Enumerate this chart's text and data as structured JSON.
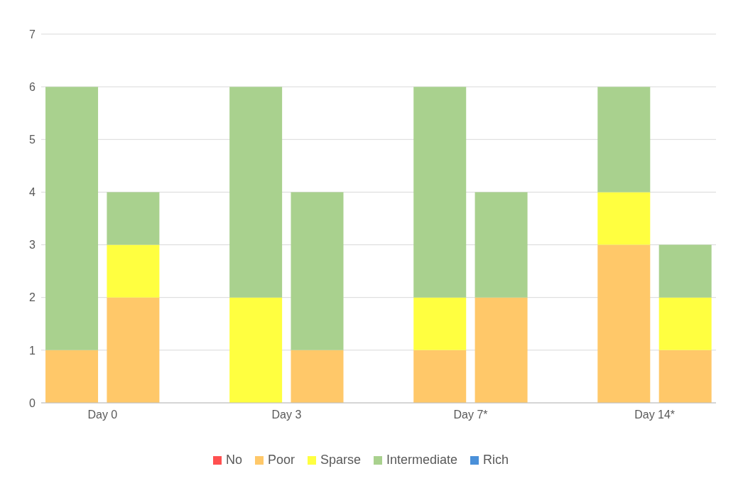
{
  "chart_data": {
    "type": "bar",
    "stacked": true,
    "categories": [
      "Day 0",
      null,
      null,
      "Day 3",
      null,
      null,
      "Day 7*",
      null,
      null,
      "Day 14*",
      null
    ],
    "series": [
      {
        "name": "No",
        "color": "#ff5050",
        "values": [
          0,
          0,
          null,
          0,
          0,
          null,
          0,
          0,
          null,
          0,
          0
        ]
      },
      {
        "name": "Poor",
        "color": "#ffc869",
        "values": [
          1,
          2,
          null,
          0,
          1,
          null,
          1,
          2,
          null,
          3,
          1
        ]
      },
      {
        "name": "Sparse",
        "color": "#ffff40",
        "values": [
          0,
          1,
          null,
          2,
          0,
          null,
          1,
          0,
          null,
          1,
          1
        ]
      },
      {
        "name": "Intermediate",
        "color": "#a9d18e",
        "values": [
          5,
          1,
          null,
          4,
          3,
          null,
          4,
          2,
          null,
          2,
          1
        ]
      },
      {
        "name": "Rich",
        "color": "#4a90d9",
        "values": [
          0,
          0,
          null,
          0,
          0,
          null,
          0,
          0,
          null,
          0,
          0
        ]
      }
    ],
    "ylim": [
      0,
      7
    ],
    "yticks": [
      0,
      1,
      2,
      3,
      4,
      5,
      6,
      7
    ],
    "grid": "y",
    "legend": "bottom"
  }
}
